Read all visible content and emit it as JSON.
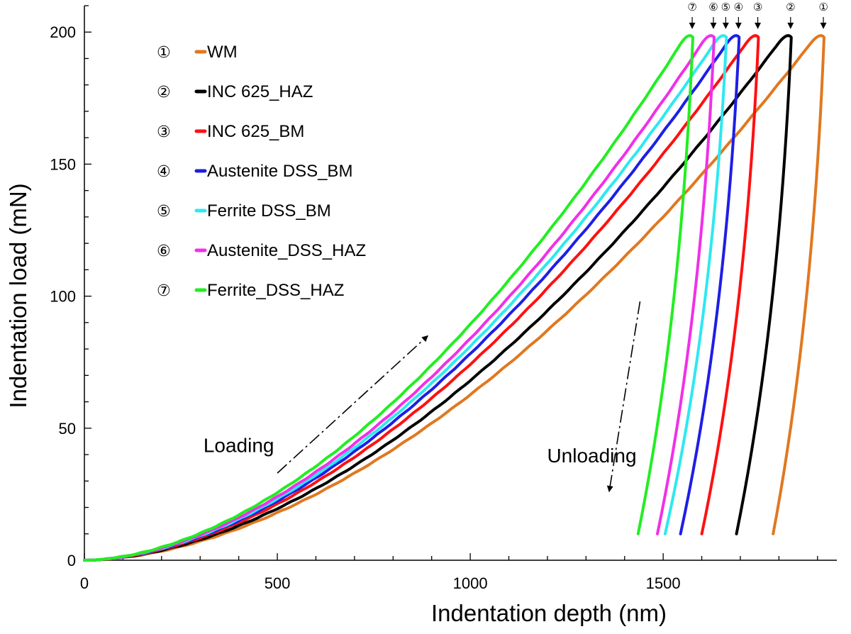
{
  "chart_data": {
    "type": "line",
    "title": "",
    "xlabel": "Indentation  depth  (nm)",
    "ylabel": "Indentation  load  (mN)",
    "xlim": [
      0,
      1950
    ],
    "ylim": [
      0,
      210
    ],
    "x_ticks": [
      0,
      500,
      1000,
      1500
    ],
    "y_ticks": [
      0,
      50,
      100,
      150,
      200
    ],
    "grid": false,
    "legend_position": "top-left",
    "series": [
      {
        "marker": "①",
        "name": "WM",
        "color": "#e07820",
        "h_max": 1905,
        "p_max": 200,
        "h_unload_end": 1785,
        "p_unload_end": 10
      },
      {
        "marker": "②",
        "name": "INC 625_HAZ",
        "color": "#000000",
        "h_max": 1820,
        "p_max": 200,
        "h_unload_end": 1690,
        "p_unload_end": 10
      },
      {
        "marker": "③",
        "name": "INC 625_BM",
        "color": "#ff1010",
        "h_max": 1735,
        "p_max": 200,
        "h_unload_end": 1600,
        "p_unload_end": 10
      },
      {
        "marker": "④",
        "name": "Austenite DSS_BM",
        "color": "#1e1ee6",
        "h_max": 1685,
        "p_max": 200,
        "h_unload_end": 1545,
        "p_unload_end": 10
      },
      {
        "marker": "⑤",
        "name": "Ferrite DSS_BM",
        "color": "#2ee8f0",
        "h_max": 1652,
        "p_max": 200,
        "h_unload_end": 1505,
        "p_unload_end": 10
      },
      {
        "marker": "⑥",
        "name": "Austenite_DSS_HAZ",
        "color": "#f030e8",
        "h_max": 1620,
        "p_max": 200,
        "h_unload_end": 1485,
        "p_unload_end": 10
      },
      {
        "marker": "⑦",
        "name": "Ferrite_DSS_HAZ",
        "color": "#22ee22",
        "h_max": 1565,
        "p_max": 200,
        "h_unload_end": 1435,
        "p_unload_end": 10
      }
    ],
    "annotations": {
      "loading": {
        "text": "Loading",
        "x": 400,
        "y": 41
      },
      "unloading": {
        "text": "Unloading",
        "x": 1315,
        "y": 37
      },
      "loading_arrow": {
        "from": [
          500,
          33
        ],
        "to": [
          890,
          85
        ]
      },
      "unloading_arrow": {
        "from": [
          1440,
          98
        ],
        "to": [
          1360,
          26
        ]
      }
    }
  }
}
